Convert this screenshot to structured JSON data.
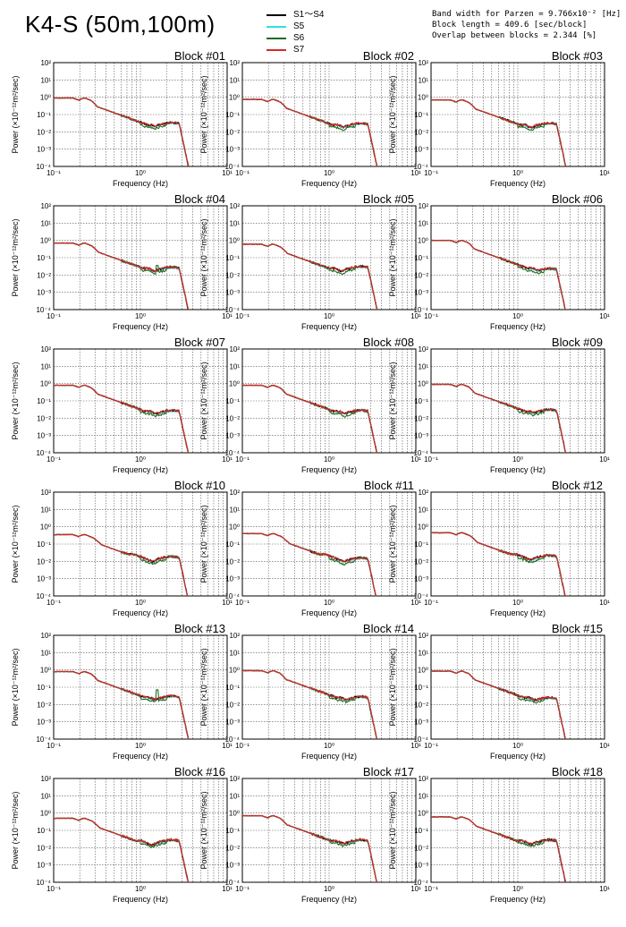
{
  "figure": {
    "title": "K4-S (50m,100m)",
    "params": [
      "Band width for Parzen = 9.766x10⁻² [Hz]",
      "Block length = 409.6 [sec/block]",
      "Overlap between blocks = 2.344 [%]"
    ]
  },
  "legend": [
    {
      "name": "S1～S4",
      "color": "#000000"
    },
    {
      "name": "S5",
      "color": "#33dddd"
    },
    {
      "name": "S6",
      "color": "#1f6b1f"
    },
    {
      "name": "S7",
      "color": "#d42a2a"
    }
  ],
  "chart_data": {
    "type": "line",
    "xlabel": "Frequency (Hz)",
    "ylabel": "Power (×10⁻¹²m²/sec)",
    "xscale": "log",
    "yscale": "log",
    "xlim": [
      0.1,
      10
    ],
    "ylim": [
      0.0001,
      100
    ],
    "xticks": [
      "10⁻¹",
      "10⁰",
      "10¹"
    ],
    "yticks": [
      "10²",
      "10¹",
      "10⁰",
      "10⁻¹",
      "10⁻²",
      "10⁻³",
      "10⁻⁴"
    ],
    "grid": true,
    "legend_position": "top",
    "series_names": [
      "S1～S4",
      "S5",
      "S6",
      "S7"
    ],
    "series_colors": [
      "#000000",
      "#33dddd",
      "#1f6b1f",
      "#d42a2a"
    ],
    "panels": [
      {
        "title": "Block #01",
        "peak": 0.9,
        "hump": 0.022,
        "s6_spike": 0
      },
      {
        "title": "Block #02",
        "peak": 0.75,
        "hump": 0.02,
        "s6_spike": 0
      },
      {
        "title": "Block #03",
        "peak": 0.7,
        "hump": 0.02,
        "s6_spike": 0
      },
      {
        "title": "Block #04",
        "peak": 0.7,
        "hump": 0.018,
        "s6_spike": 0.05
      },
      {
        "title": "Block #05",
        "peak": 0.6,
        "hump": 0.02,
        "s6_spike": 0
      },
      {
        "title": "Block #06",
        "peak": 1.0,
        "hump": 0.015,
        "s6_spike": 0
      },
      {
        "title": "Block #07",
        "peak": 0.8,
        "hump": 0.018,
        "s6_spike": 0
      },
      {
        "title": "Block #08",
        "peak": 0.8,
        "hump": 0.018,
        "s6_spike": 0
      },
      {
        "title": "Block #09",
        "peak": 0.9,
        "hump": 0.02,
        "s6_spike": 0
      },
      {
        "title": "Block #10",
        "peak": 0.35,
        "hump": 0.012,
        "s6_spike": 0
      },
      {
        "title": "Block #11",
        "peak": 0.4,
        "hump": 0.01,
        "s6_spike": 0
      },
      {
        "title": "Block #12",
        "peak": 0.45,
        "hump": 0.014,
        "s6_spike": 0
      },
      {
        "title": "Block #13",
        "peak": 0.8,
        "hump": 0.02,
        "s6_spike": 0.1
      },
      {
        "title": "Block #14",
        "peak": 0.9,
        "hump": 0.018,
        "s6_spike": 0
      },
      {
        "title": "Block #15",
        "peak": 0.85,
        "hump": 0.016,
        "s6_spike": 0
      },
      {
        "title": "Block #16",
        "peak": 0.5,
        "hump": 0.018,
        "s6_spike": 0
      },
      {
        "title": "Block #17",
        "peak": 0.7,
        "hump": 0.018,
        "s6_spike": 0
      },
      {
        "title": "Block #18",
        "peak": 0.6,
        "hump": 0.018,
        "s6_spike": 0
      }
    ]
  }
}
